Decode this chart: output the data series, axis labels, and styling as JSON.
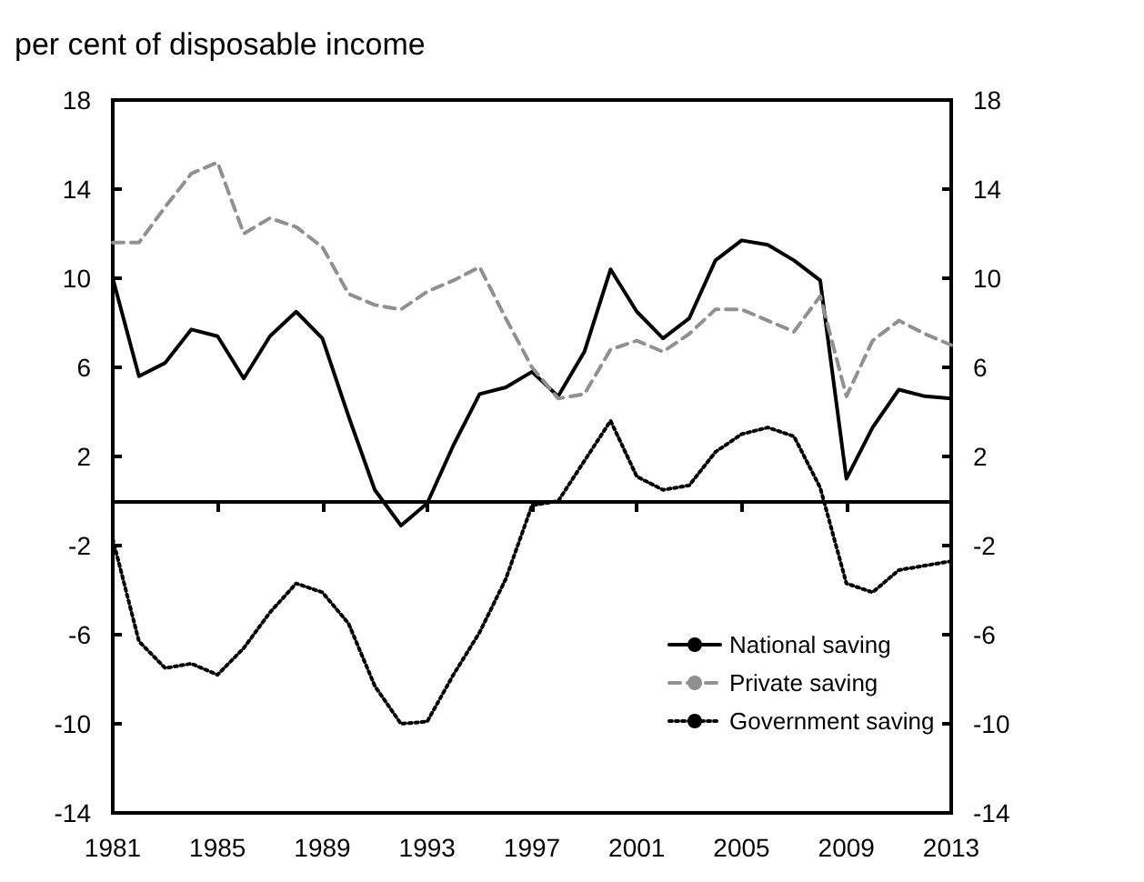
{
  "chart_data": {
    "type": "line",
    "ylabel": "per cent of disposable income",
    "categories": [
      "1981",
      null,
      null,
      null,
      "1985",
      null,
      null,
      null,
      "1989",
      null,
      null,
      null,
      "1993",
      null,
      null,
      null,
      "1997",
      null,
      null,
      null,
      "2001",
      null,
      null,
      null,
      "2005",
      null,
      null,
      null,
      "2009",
      null,
      null,
      null,
      "2013"
    ],
    "series": [
      {
        "name": "National saving",
        "color": "#000000",
        "line_style": "solid",
        "values": [
          10.0,
          5.6,
          6.2,
          7.7,
          7.4,
          5.5,
          7.4,
          8.5,
          7.3,
          3.8,
          0.5,
          -1.1,
          -0.1,
          2.5,
          4.8,
          5.1,
          5.8,
          4.7,
          6.7,
          10.4,
          8.5,
          7.3,
          8.2,
          10.8,
          11.7,
          11.5,
          10.8,
          9.9,
          1.0,
          3.3,
          5.0,
          4.7,
          4.6
        ]
      },
      {
        "name": "Private saving",
        "color": "#909090",
        "line_style": "dashed",
        "values": [
          11.6,
          11.6,
          13.2,
          14.7,
          15.2,
          12.0,
          12.7,
          12.3,
          11.4,
          9.3,
          8.8,
          8.6,
          9.4,
          9.9,
          10.5,
          8.2,
          6.0,
          4.6,
          4.8,
          6.8,
          7.2,
          6.7,
          7.5,
          8.6,
          8.6,
          8.1,
          7.6,
          9.2,
          4.7,
          7.2,
          8.1,
          7.5,
          7.0
        ]
      },
      {
        "name": "Government saving",
        "color": "#000000",
        "line_style": "dotted",
        "values": [
          -1.7,
          -6.3,
          -7.5,
          -7.3,
          -7.8,
          -6.6,
          -5.0,
          -3.7,
          -4.1,
          -5.5,
          -8.3,
          -10.0,
          -9.9,
          -7.8,
          -5.9,
          -3.5,
          -0.2,
          0.0,
          1.8,
          3.6,
          1.1,
          0.5,
          0.7,
          2.2,
          3.0,
          3.3,
          2.9,
          0.6,
          -3.7,
          -4.1,
          -3.1,
          -2.9,
          -2.7
        ]
      }
    ],
    "ylim": [
      -14,
      18
    ],
    "yticks": [
      -14,
      -10,
      -6,
      -2,
      2,
      6,
      10,
      14,
      18
    ],
    "y2lim": [
      -14,
      18
    ],
    "y2ticks": [
      -14,
      -10,
      -6,
      -2,
      2,
      6,
      10,
      14,
      18
    ],
    "legend": "bottom right",
    "grid": false,
    "marker": "none"
  }
}
